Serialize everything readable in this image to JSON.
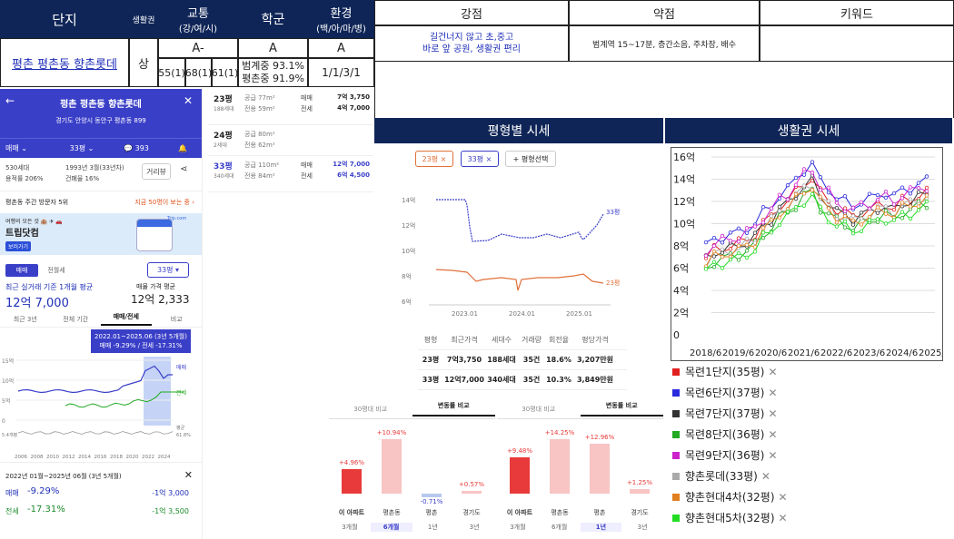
{
  "table": {
    "headers": {
      "danji": "단지",
      "life": "생활권",
      "traffic": "교통",
      "traffic_sub": "(강/여/시)",
      "school": "학군",
      "env": "환경",
      "env_sub": "(백/아/마/병)",
      "strength": "강점",
      "weakness": "약점",
      "keyword": "키워드"
    },
    "row": {
      "name": "평촌 평촌동 향촌롯데",
      "life": "상",
      "traffic_grade": "A-",
      "traffic_vals": [
        "55(1)",
        "68(1)",
        "61(1)"
      ],
      "school_grade": "A",
      "school_lines": [
        "범계중 93.1%",
        "평촌중 91.9%"
      ],
      "env_grade": "A",
      "env_vals": "1/1/3/1",
      "strength_lines": [
        "길건너지 않고 초,중고",
        "바로 앞 공원, 생활권 편리"
      ],
      "weakness": "범계역 15~17분, 층간소음, 주차장, 배수",
      "keyword": ""
    }
  },
  "app": {
    "title": "평촌 평촌동 향촌롯데",
    "address": "경기도 안양시 동안구 평촌동 899",
    "toolbar": {
      "deal": "매매",
      "size": "33평",
      "comments": "393"
    },
    "info": {
      "households": "530세대",
      "built": "1993년 3월(33년차)",
      "far": "용적률 206%",
      "bcr": "건폐율 16%",
      "dist_btn": "거리뷰"
    },
    "visitors": "평촌동 주간 방문자 5위",
    "visitors_now": "지금 50명이 보는 중 ›",
    "ad": {
      "line1": "여행의 모든 것 🏨 ✈ 🚗",
      "line2": "트립닷컴",
      "line3": "보러가기",
      "brand": "Trip.com"
    },
    "tabs_deal": [
      "매매",
      "전월세"
    ],
    "size_select": "33평 ▾",
    "avg_label": "최근 실거래 기준 1개월 평균",
    "avg_value": "12억 7,000",
    "ask_label": "매물 가격 평균",
    "ask_value": "12억 2,333",
    "period_tabs": [
      "최근 3년",
      "전체 기간",
      "매매/전세",
      "비교"
    ],
    "tooltip": {
      "line1": "2022.01~2025.06 (3년 5개월)",
      "line2": "매매 -9.29% / 전세 -17.31%"
    },
    "chart_ylabels": [
      "15억",
      "10억",
      "5억",
      "0"
    ],
    "chart_right": [
      "매매",
      "전세",
      "평균",
      "61.8%"
    ],
    "chart_y2": "5.4개평",
    "chart_xlabels": [
      "2006",
      "2008",
      "2010",
      "2012",
      "2014",
      "2016",
      "2018",
      "2020",
      "2022",
      "2024"
    ],
    "summary": {
      "period": "2022년 01월~2025년 06월 (3년 5개월)",
      "deal_label": "매매",
      "deal_pct": "-9.29%",
      "deal_diff": "-1억 3,000",
      "rent_label": "전세",
      "rent_pct": "-17.31%",
      "rent_diff": "-1억 3,500"
    }
  },
  "types": [
    {
      "name": "23평",
      "supply": "공급 77m²",
      "hh": "188세대",
      "exclusive": "전용 59m²",
      "deal_lbl": "매매",
      "deal": "7억 3,750",
      "rent_lbl": "전세",
      "rent": "4억 7,000"
    },
    {
      "name": "24평",
      "supply": "공급 80m²",
      "hh": "2세대",
      "exclusive": "전용 62m²",
      "deal_lbl": "",
      "deal": "",
      "rent_lbl": "",
      "rent": ""
    },
    {
      "name": "33평",
      "supply": "공급 110m²",
      "hh": "340세대",
      "exclusive": "전용 84m²",
      "deal_lbl": "매매",
      "deal": "12억 7,000",
      "rent_lbl": "전세",
      "rent": "6억 4,500"
    }
  ],
  "price_panel": {
    "title": "평형별 시세",
    "chips": [
      "23평 ×",
      "33평 ×",
      "+ 평형선택"
    ],
    "ylabels": [
      "14억",
      "12억",
      "10억",
      "8억",
      "6억"
    ],
    "xlabels": [
      "2023.01",
      "2024.01",
      "2025.01"
    ],
    "series_labels": [
      "33평",
      "23평"
    ],
    "table_head": [
      "평형",
      "최근가격",
      "세대수",
      "거래량",
      "회전율",
      "평당가격"
    ],
    "table_rows": [
      [
        "23평",
        "7억3,750",
        "188세대",
        "35건",
        "18.6%",
        "3,207만원"
      ],
      [
        "33평",
        "12억7,000",
        "340세대",
        "35건",
        "10.3%",
        "3,849만원"
      ]
    ]
  },
  "life_panel": {
    "title": "생활권 시세",
    "ylabels": [
      "16억",
      "14억",
      "12억",
      "10억",
      "8억",
      "6억",
      "4억",
      "2억",
      "0"
    ],
    "xlabels": [
      "2018/6",
      "2019/6",
      "2020/6",
      "2021/6",
      "2022/6",
      "2023/6",
      "2024/6",
      "2025/6"
    ],
    "legend": [
      {
        "name": "목련1단지(35평)",
        "color": "#e02020"
      },
      {
        "name": "목련6단지(37평)",
        "color": "#2a2adc"
      },
      {
        "name": "목련7단지(37평)",
        "color": "#333333"
      },
      {
        "name": "목련8단지(36평)",
        "color": "#22aa22"
      },
      {
        "name": "목련9단지(36평)",
        "color": "#cc22cc"
      },
      {
        "name": "향촌롯데(33평)",
        "color": "#aaaaaa"
      },
      {
        "name": "향촌현대4차(32평)",
        "color": "#e08020"
      },
      {
        "name": "향촌현대5차(32평)",
        "color": "#22dd22"
      }
    ]
  },
  "compare1": {
    "tabs": [
      "30평대 비교",
      "변동률 비교"
    ],
    "bars": [
      {
        "label": "이 아파트",
        "pct": "+4.96%",
        "value": 4.96
      },
      {
        "label": "평촌동",
        "pct": "+10.94%",
        "value": 10.94
      },
      {
        "label": "평촌",
        "pct": "-0.71%",
        "value": -0.71
      },
      {
        "label": "경기도",
        "pct": "+0.57%",
        "value": 0.57
      }
    ],
    "periods": [
      "3개월",
      "6개월",
      "1년",
      "3년"
    ]
  },
  "compare2": {
    "tabs": [
      "30평대 비교",
      "변동률 비교"
    ],
    "bars": [
      {
        "label": "이 아파트",
        "pct": "+9.48%",
        "value": 9.48
      },
      {
        "label": "평촌동",
        "pct": "+14.25%",
        "value": 14.25
      },
      {
        "label": "평촌",
        "pct": "+12.96%",
        "value": 12.96
      },
      {
        "label": "경기도",
        "pct": "+1.25%",
        "value": 1.25
      }
    ],
    "periods": [
      "3개월",
      "6개월",
      "1년",
      "3년"
    ]
  }
}
